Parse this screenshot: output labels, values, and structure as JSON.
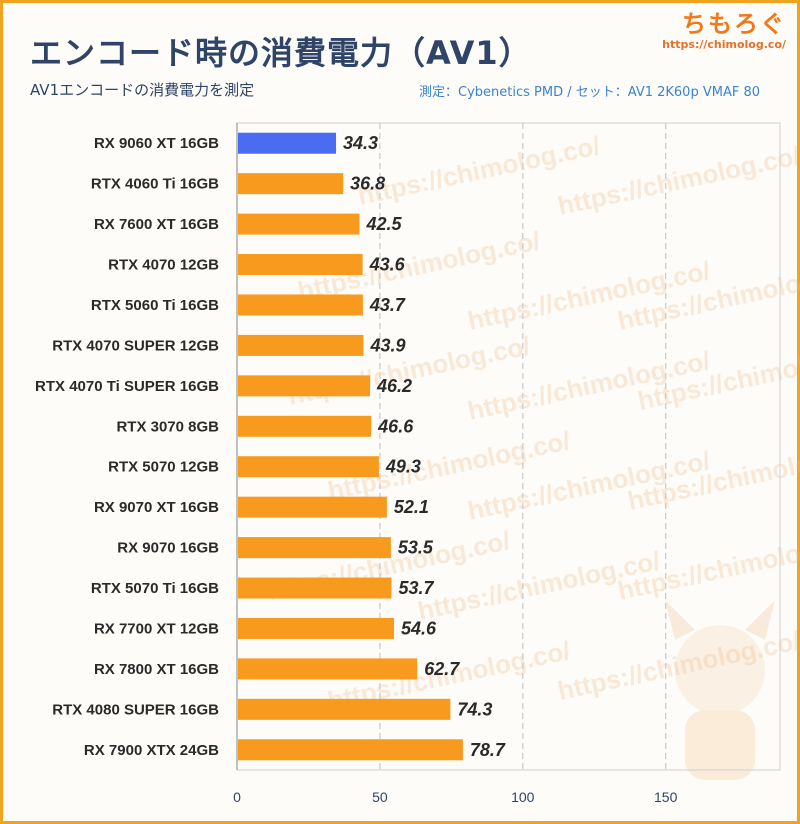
{
  "header": {
    "title": "エンコード時の消費電力（AV1）",
    "subtitle": "AV1エンコードの消費電力を測定",
    "measure_note": "測定：Cybenetics PMD / セット：AV1 2K60p VMAF 80",
    "logo_text": "ちもろぐ",
    "logo_url": "https://chimolog.co/",
    "watermark": "https://chimolog.co/"
  },
  "colors": {
    "highlight": "#4a6cf0",
    "bar": "#f79a1e",
    "title": "#2f4466",
    "grid": "#c8c8c8"
  },
  "chart_data": {
    "type": "bar",
    "orientation": "horizontal",
    "title": "エンコード時の消費電力（AV1）",
    "subtitle": "AV1エンコードの消費電力を測定",
    "categories": [
      "RX 9060 XT 16GB",
      "RTX 4060 Ti 16GB",
      "RX 7600 XT 16GB",
      "RTX 4070 12GB",
      "RTX 5060 Ti 16GB",
      "RTX 4070 SUPER 12GB",
      "RTX 4070 Ti SUPER 16GB",
      "RTX 3070 8GB",
      "RTX 5070 12GB",
      "RX 9070 XT 16GB",
      "RX 9070 16GB",
      "RTX 5070 Ti 16GB",
      "RX 7700 XT 12GB",
      "RX 7800 XT 16GB",
      "RTX 4080 SUPER 16GB",
      "RX 7900 XTX 24GB"
    ],
    "values": [
      34.3,
      36.8,
      42.5,
      43.6,
      43.7,
      43.9,
      46.2,
      46.6,
      49.3,
      52.1,
      53.5,
      53.7,
      54.6,
      62.7,
      74.3,
      78.7
    ],
    "highlight_index": 0,
    "xlim": [
      0,
      190
    ],
    "xticks": [
      "0",
      "50",
      "100",
      "150"
    ],
    "grid": true
  }
}
